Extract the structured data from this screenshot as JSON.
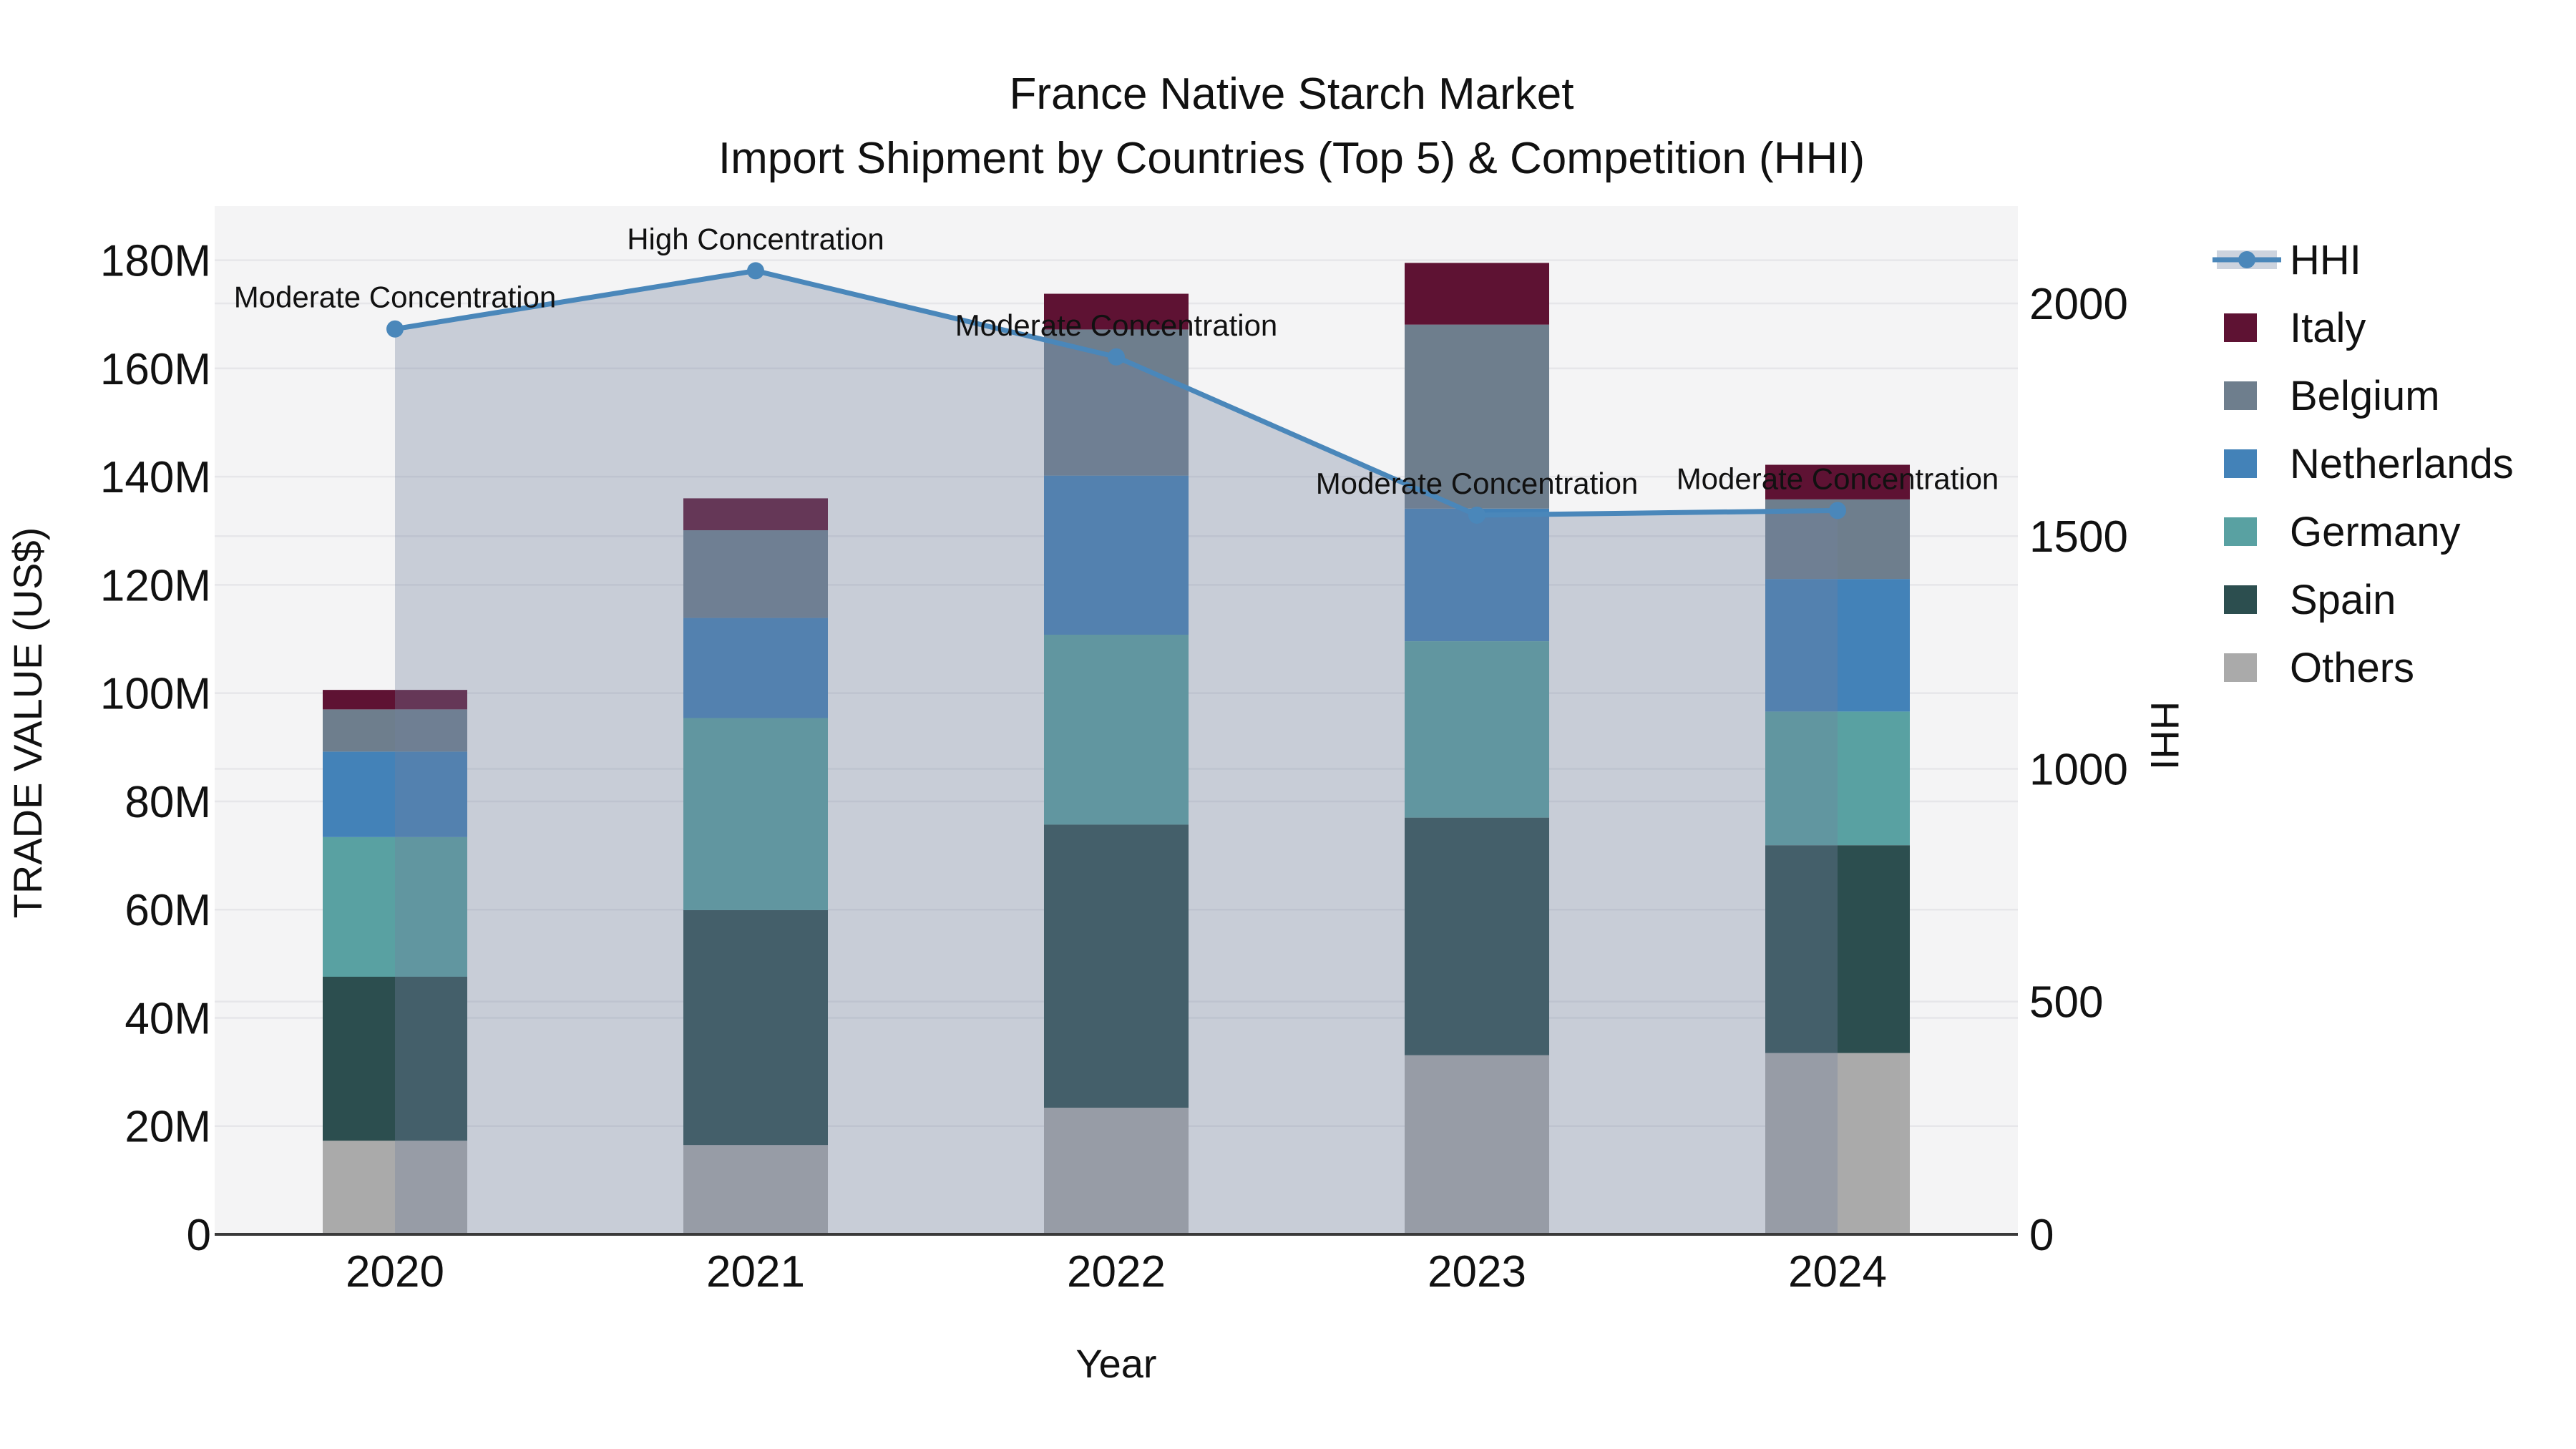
{
  "title": {
    "line1": "France Native Starch Market",
    "line2": "Import Shipment by Countries (Top 5) & Competition (HHI)"
  },
  "chart_data": {
    "type": "combo: stacked-bar + line",
    "categories": [
      "2020",
      "2021",
      "2022",
      "2023",
      "2024"
    ],
    "value_unit": "million US$",
    "series": [
      {
        "name": "Others",
        "values": [
          17.3,
          16.5,
          23.4,
          33.1,
          33.5
        ]
      },
      {
        "name": "Spain",
        "values": [
          30.3,
          43.4,
          52.3,
          43.9,
          38.4
        ]
      },
      {
        "name": "Germany",
        "values": [
          25.8,
          35.5,
          35.1,
          32.6,
          24.7
        ]
      },
      {
        "name": "Netherlands",
        "values": [
          15.8,
          18.5,
          29.4,
          24.5,
          24.5
        ]
      },
      {
        "name": "Belgium",
        "values": [
          7.8,
          16.2,
          27.0,
          34.0,
          14.7
        ]
      },
      {
        "name": "Italy",
        "values": [
          3.6,
          5.9,
          6.6,
          11.4,
          6.4
        ]
      }
    ],
    "line_series": {
      "name": "HHI",
      "values": [
        1945,
        2070,
        1885,
        1545,
        1555
      ],
      "area_fill": true
    },
    "annotations": [
      {
        "x": "2020",
        "text": "Moderate Concentration"
      },
      {
        "x": "2021",
        "text": "High Concentration"
      },
      {
        "x": "2022",
        "text": "Moderate Concentration"
      },
      {
        "x": "2023",
        "text": "Moderate Concentration"
      },
      {
        "x": "2024",
        "text": "Moderate Concentration"
      }
    ],
    "xlabel": "Year",
    "ylabel_left": "TRADE VALUE (US$)",
    "ylabel_right": "HHI",
    "y_left_ticks": [
      "0",
      "20M",
      "40M",
      "60M",
      "80M",
      "100M",
      "120M",
      "140M",
      "160M",
      "180M"
    ],
    "y_left_tick_values": [
      0,
      20,
      40,
      60,
      80,
      100,
      120,
      140,
      160,
      180
    ],
    "y_right_ticks": [
      "0",
      "500",
      "1000",
      "1500",
      "2000"
    ],
    "y_right_tick_values": [
      0,
      500,
      1000,
      1500,
      2000
    ],
    "ylim_left": [
      0,
      190
    ],
    "ylim_right": [
      0,
      2209
    ],
    "grid": true,
    "legend_position": "right",
    "legend_order": [
      "HHI",
      "Italy",
      "Belgium",
      "Netherlands",
      "Germany",
      "Spain",
      "Others"
    ]
  },
  "colors": {
    "italy": "#5e1233",
    "belgium": "#6e7e8d",
    "netherlands": "#4382b8",
    "germany": "#59a1a2",
    "spain": "#2c4e4f",
    "others": "#aaaaaa",
    "hhi": "#4a87ba",
    "hhi_band": "rgba(114,129,158,0.34)",
    "legend_band_swatch": "#ccd3de",
    "plot_bg": "#f4f4f5",
    "grid_line": "#e6e6e9",
    "axis_line": "#3a3a3a",
    "text": "#111111"
  }
}
